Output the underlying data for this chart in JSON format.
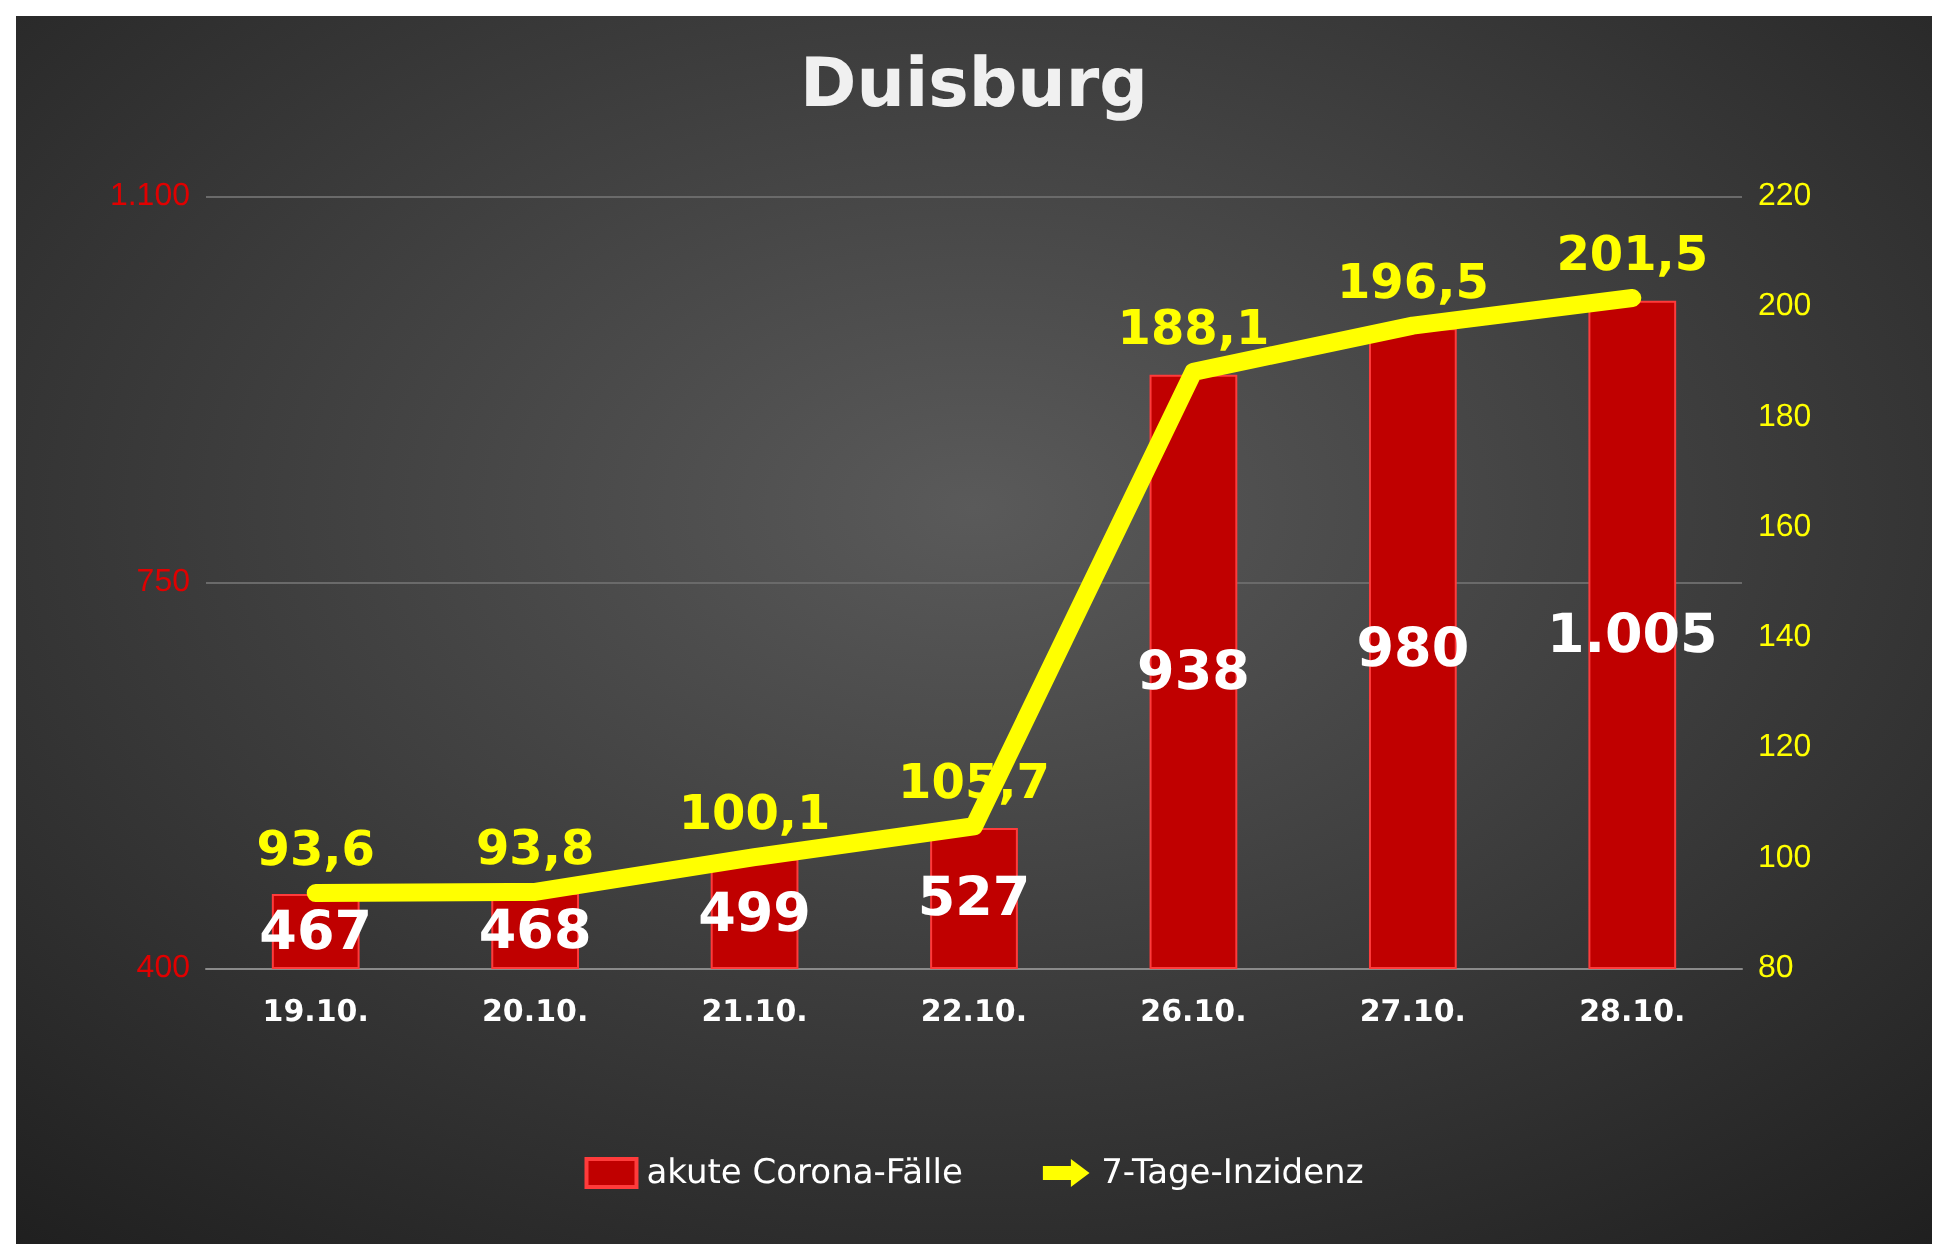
{
  "chart_data": {
    "type": "bar",
    "title": "Duisburg",
    "categories": [
      "19.10.",
      "20.10.",
      "21.10.",
      "22.10.",
      "26.10.",
      "27.10.",
      "28.10."
    ],
    "series": [
      {
        "name": "akute Corona-Fälle",
        "color": "#c00000",
        "values": [
          467,
          468,
          499,
          527,
          938,
          980,
          1005
        ],
        "value_labels": [
          "467",
          "468",
          "499",
          "527",
          "938",
          "980",
          "1.005"
        ]
      },
      {
        "name": "7-Tage-Inzidenz",
        "type": "line",
        "axis": "y2",
        "color": "#ffff00",
        "values": [
          93.6,
          93.8,
          100.1,
          105.7,
          188.1,
          196.5,
          201.5
        ],
        "value_labels": [
          "93,6",
          "93,8",
          "100,1",
          "105,7",
          "188,1",
          "196,5",
          "201,5"
        ]
      }
    ],
    "ylim": [
      400,
      1100
    ],
    "yticks": [
      400,
      750,
      {
        "value": 1100,
        "label": "1.100"
      }
    ],
    "y2lim": [
      80,
      220
    ],
    "y2ticks": [
      80,
      100,
      120,
      140,
      160,
      180,
      200,
      220
    ],
    "grid": "y",
    "legend": "bottom",
    "marker": "none",
    "line_style": "solid"
  }
}
